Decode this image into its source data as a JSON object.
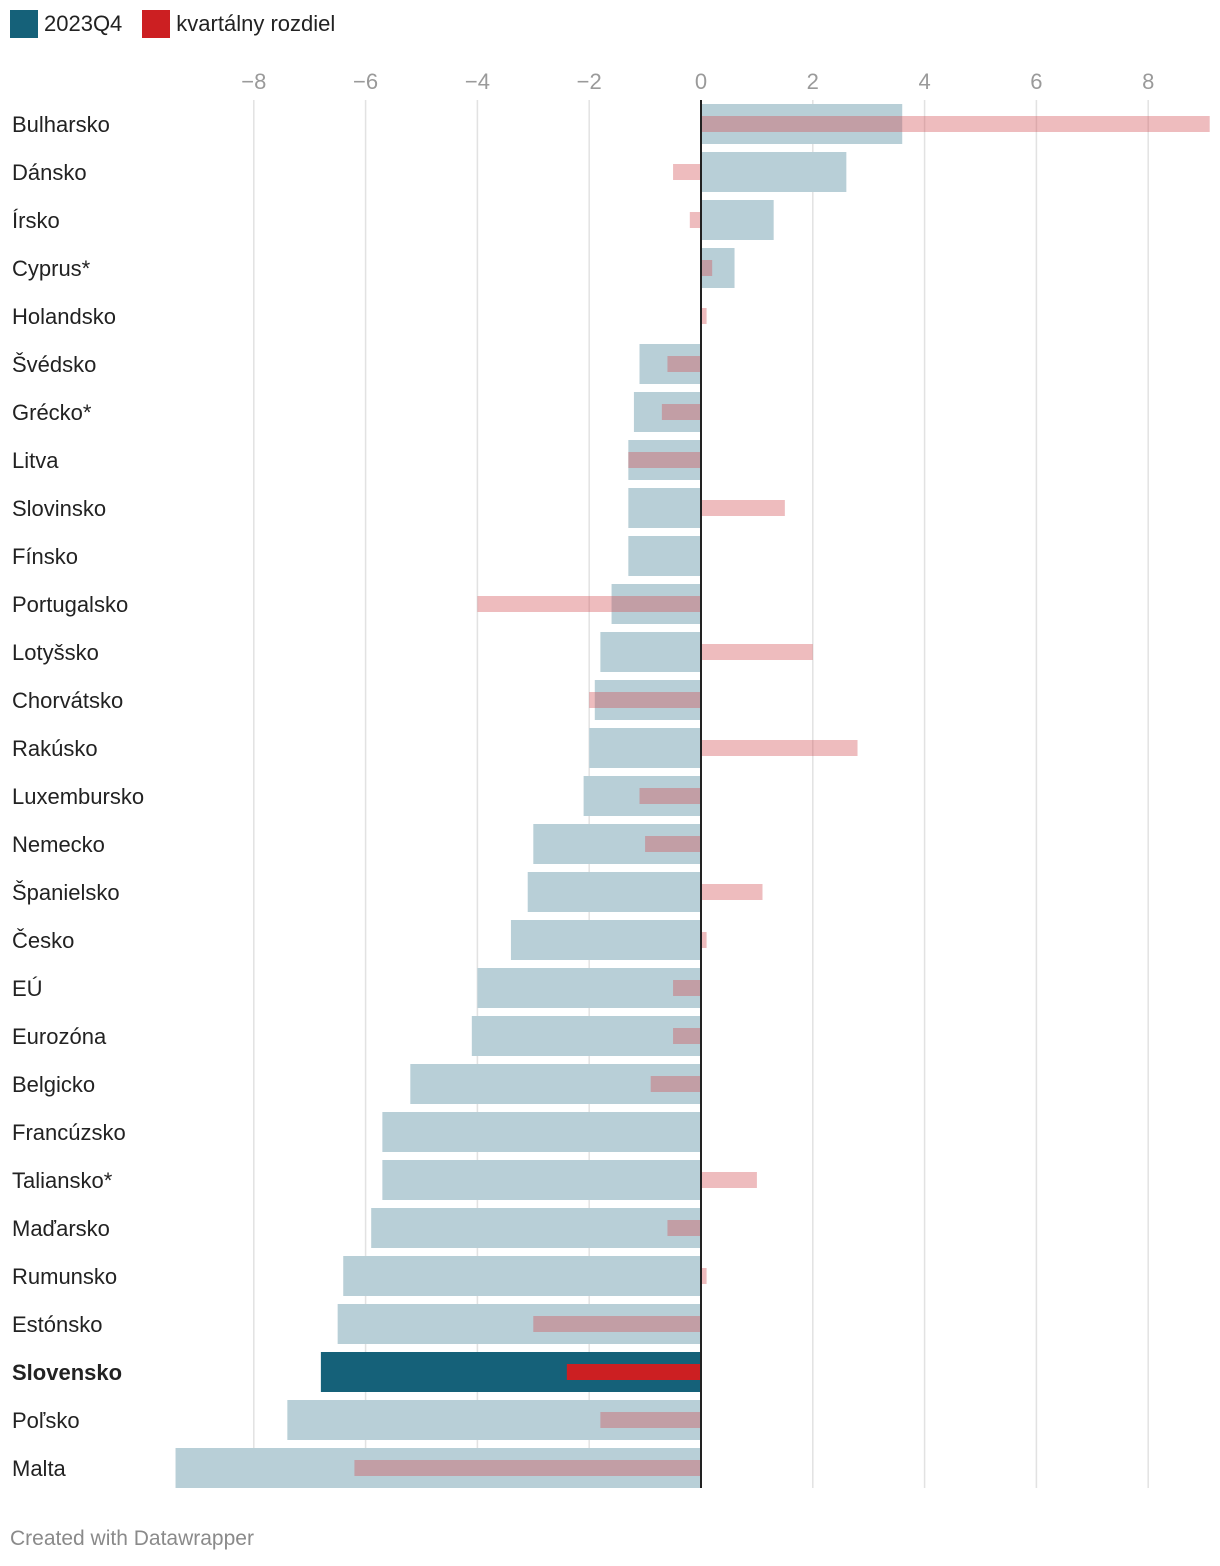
{
  "legend": [
    {
      "label": "2023Q4",
      "color": "#156179"
    },
    {
      "label": "kvartálny rozdiel",
      "color": "#cc1f22"
    }
  ],
  "footer": "Created with Datawrapper",
  "chart_data": {
    "type": "bar",
    "orientation": "horizontal",
    "title": "",
    "xlabel": "",
    "ylabel": "",
    "xlim": [
      -9.4,
      9.1
    ],
    "x_ticks": [
      -8,
      -6,
      -4,
      -2,
      0,
      2,
      4,
      6,
      8
    ],
    "x_tick_labels": [
      "−8",
      "−6",
      "−4",
      "−2",
      "0",
      "2",
      "4",
      "6",
      "8"
    ],
    "grid": true,
    "legend_position": "top-left",
    "highlight_category": "Slovensko",
    "colors": {
      "value_muted": "#b8cfd7",
      "value_highlight": "#156179",
      "diff_muted": "rgba(210,80,85,0.38)",
      "diff_highlight": "#cc1f22",
      "grid": "#e2e2e2",
      "zero_line": "#222222",
      "tick_label": "#9a9a9a"
    },
    "categories": [
      "Bulharsko",
      "Dánsko",
      "Írsko",
      "Cyprus*",
      "Holandsko",
      "Švédsko",
      "Grécko*",
      "Litva",
      "Slovinsko",
      "Fínsko",
      "Portugalsko",
      "Lotyšsko",
      "Chorvátsko",
      "Rakúsko",
      "Luxembursko",
      "Nemecko",
      "Španielsko",
      "Česko",
      "EÚ",
      "Eurozóna",
      "Belgicko",
      "Francúzsko",
      "Taliansko*",
      "Maďarsko",
      "Rumunsko",
      "Estónsko",
      "Slovensko",
      "Poľsko",
      "Malta"
    ],
    "series": [
      {
        "name": "2023Q4",
        "values": [
          3.6,
          2.6,
          1.3,
          0.6,
          0.0,
          -1.1,
          -1.2,
          -1.3,
          -1.3,
          -1.3,
          -1.6,
          -1.8,
          -1.9,
          -2.0,
          -2.1,
          -3.0,
          -3.1,
          -3.4,
          -4.0,
          -4.1,
          -5.2,
          -5.7,
          -5.7,
          -5.9,
          -6.4,
          -6.5,
          -6.8,
          -7.4,
          -9.4
        ]
      },
      {
        "name": "kvartálny rozdiel",
        "values": [
          9.1,
          -0.5,
          -0.2,
          0.2,
          0.1,
          -0.6,
          -0.7,
          -1.3,
          1.5,
          0.0,
          -4.0,
          2.0,
          -2.0,
          2.8,
          -1.1,
          -1.0,
          1.1,
          0.1,
          -0.5,
          -0.5,
          -0.9,
          0.0,
          1.0,
          -0.6,
          0.1,
          -3.0,
          -2.4,
          -1.8,
          -6.2
        ]
      }
    ]
  }
}
